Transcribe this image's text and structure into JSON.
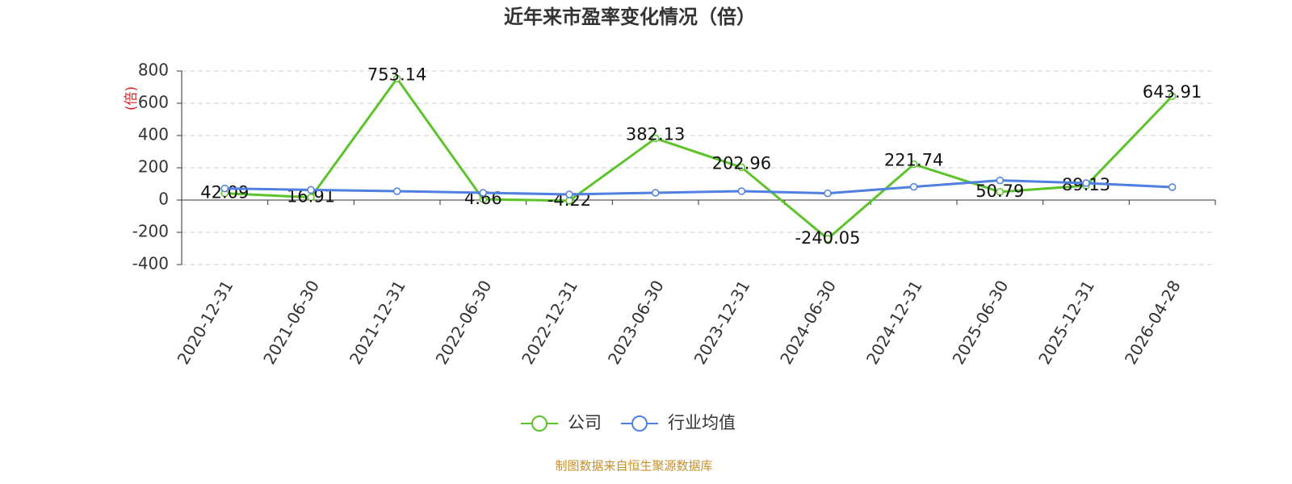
{
  "chart_data": {
    "type": "line",
    "title": "近年来市盈率变化情况（倍）",
    "y_label": "(倍)",
    "categories": [
      "2020-12-31",
      "2021-06-30",
      "2021-12-31",
      "2022-06-30",
      "2022-12-31",
      "2023-06-30",
      "2023-12-31",
      "2024-06-30",
      "2024-12-31",
      "2025-06-30",
      "2025-12-31",
      "2026-04-28"
    ],
    "series": [
      {
        "name": "公司",
        "color": "#5cc42a",
        "values": [
          42.09,
          16.91,
          753.14,
          4.66,
          -4.22,
          382.13,
          202.96,
          -240.05,
          221.74,
          50.79,
          89.13,
          643.91
        ],
        "show_labels": true
      },
      {
        "name": "行业均值",
        "color": "#4f7fe0",
        "values": [
          72,
          63,
          55,
          45,
          35,
          45,
          55,
          42,
          82,
          122,
          105,
          80
        ],
        "show_labels": false
      }
    ],
    "ylim": [
      -400,
      800
    ],
    "yticks": [
      -400,
      -200,
      0,
      200,
      400,
      600,
      800
    ],
    "grid": true,
    "source": "制图数据来自恒生聚源数据库"
  }
}
